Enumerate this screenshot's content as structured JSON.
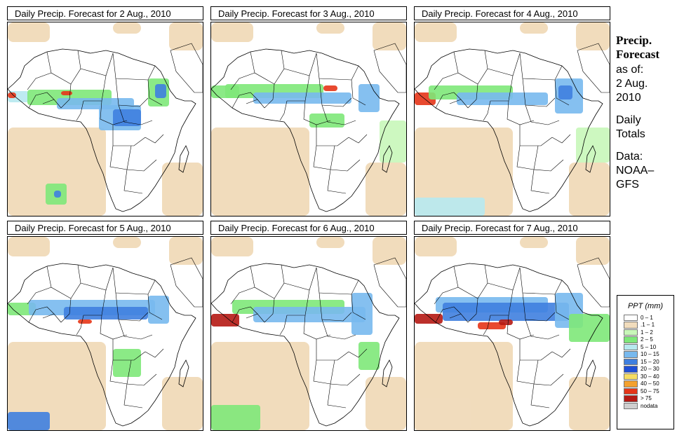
{
  "panels": [
    {
      "title": "Daily Precip. Forecast for  2 Aug., 2010"
    },
    {
      "title": "Daily Precip. Forecast for  3 Aug., 2010"
    },
    {
      "title": "Daily Precip. Forecast for  4 Aug., 2010"
    },
    {
      "title": "Daily Precip. Forecast for  5 Aug., 2010"
    },
    {
      "title": "Daily Precip. Forecast for  6 Aug., 2010"
    },
    {
      "title": "Daily Precip. Forecast for  7 Aug., 2010"
    }
  ],
  "sidebar": {
    "heading_line1": "Precip.",
    "heading_line2": "Forecast",
    "asof_label": "as of:",
    "date_line1": "2 Aug.",
    "date_line2": "2010",
    "totals_line1": "Daily",
    "totals_line2": "Totals",
    "data_label": "Data:",
    "source_line1": "NOAA–",
    "source_line2": "GFS"
  },
  "legend": {
    "title": "PPT (mm)",
    "items": [
      {
        "label": "0 – 1",
        "color": "#ffffff"
      },
      {
        "label": ".1 – 1",
        "color": "#f1dcbc"
      },
      {
        "label": "1 – 2",
        "color": "#c8f7b9"
      },
      {
        "label": "2 – 5",
        "color": "#7ee879"
      },
      {
        "label": "5 – 10",
        "color": "#b7e9ef"
      },
      {
        "label": "10 – 15",
        "color": "#78b9ee"
      },
      {
        "label": "15 – 20",
        "color": "#3f7fdf"
      },
      {
        "label": "20 – 30",
        "color": "#1f4fd6"
      },
      {
        "label": "30 – 40",
        "color": "#f6dd63"
      },
      {
        "label": "40 – 50",
        "color": "#f3a12e"
      },
      {
        "label": "50 – 75",
        "color": "#e53518"
      },
      {
        "label": "> 75",
        "color": "#b51a14"
      },
      {
        "label": "nodata",
        "color": "#cfcfcf"
      }
    ]
  }
}
